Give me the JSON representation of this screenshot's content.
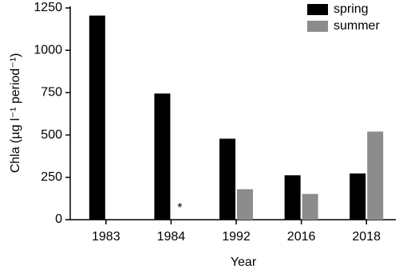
{
  "chart_data": {
    "type": "bar",
    "xlabel": "Year",
    "ylabel": "Chla (µg l⁻¹ period⁻¹)",
    "categories": [
      "1983",
      "1984",
      "1992",
      "2016",
      "2018"
    ],
    "series": [
      {
        "name": "spring",
        "color": "#000000",
        "values": [
          1205,
          745,
          478,
          262,
          273
        ]
      },
      {
        "name": "summer",
        "color": "#8c8c8c",
        "values": [
          null,
          null,
          180,
          152,
          520
        ]
      }
    ],
    "annotations": [
      {
        "text": "*",
        "category": "1984",
        "series": "summer"
      }
    ],
    "ylim": [
      0,
      1250
    ],
    "yticks": [
      0,
      250,
      500,
      750,
      1000,
      1250
    ],
    "grid": false,
    "legend": "top-right"
  }
}
